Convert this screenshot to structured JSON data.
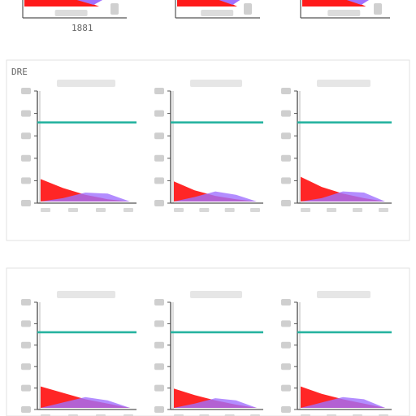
{
  "figure": {
    "section_labels": [
      "DRE",
      "",
      "",
      "",
      "",
      "",
      "",
      "",
      ""
    ],
    "top_strip_labels": [
      "1881",
      "",
      ""
    ]
  },
  "chart_data": [
    {
      "type": "area",
      "title": "",
      "xlabel": "",
      "ylabel": "",
      "ref_line": 0.72,
      "series": [
        {
          "name": "",
          "color": "#ff1a1a",
          "values": [
            0.2,
            0.12,
            0.06,
            0.02,
            0.0
          ]
        },
        {
          "name": "",
          "color": "#a070ff",
          "values": [
            0.0,
            0.03,
            0.08,
            0.07,
            0.0
          ]
        }
      ]
    },
    {
      "type": "area",
      "title": "",
      "xlabel": "",
      "ylabel": "",
      "ref_line": 0.72,
      "series": [
        {
          "name": "",
          "color": "#ff1a1a",
          "values": [
            0.18,
            0.1,
            0.05,
            0.02,
            0.0
          ]
        },
        {
          "name": "",
          "color": "#a070ff",
          "values": [
            0.0,
            0.04,
            0.09,
            0.06,
            0.0
          ]
        }
      ]
    },
    {
      "type": "area",
      "title": "",
      "xlabel": "",
      "ylabel": "",
      "ref_line": 0.72,
      "series": [
        {
          "name": "",
          "color": "#ff1a1a",
          "values": [
            0.22,
            0.13,
            0.07,
            0.03,
            0.0
          ]
        },
        {
          "name": "",
          "color": "#a070ff",
          "values": [
            0.0,
            0.03,
            0.09,
            0.08,
            0.0
          ]
        }
      ]
    },
    {
      "type": "area",
      "title": "",
      "xlabel": "",
      "ylabel": "",
      "ref_line": 0.72,
      "series": [
        {
          "name": "",
          "color": "#ff1a1a",
          "values": [
            0.2,
            0.14,
            0.08,
            0.04,
            0.0
          ]
        },
        {
          "name": "",
          "color": "#a070ff",
          "values": [
            0.0,
            0.05,
            0.1,
            0.07,
            0.0
          ]
        }
      ]
    },
    {
      "type": "area",
      "title": "",
      "xlabel": "",
      "ylabel": "",
      "ref_line": 0.72,
      "series": [
        {
          "name": "",
          "color": "#ff1a1a",
          "values": [
            0.18,
            0.12,
            0.07,
            0.03,
            0.0
          ]
        },
        {
          "name": "",
          "color": "#a070ff",
          "values": [
            0.0,
            0.04,
            0.09,
            0.07,
            0.0
          ]
        }
      ]
    },
    {
      "type": "area",
      "title": "",
      "xlabel": "",
      "ylabel": "",
      "ref_line": 0.72,
      "series": [
        {
          "name": "",
          "color": "#ff1a1a",
          "values": [
            0.2,
            0.13,
            0.08,
            0.04,
            0.0
          ]
        },
        {
          "name": "",
          "color": "#a070ff",
          "values": [
            0.0,
            0.05,
            0.1,
            0.08,
            0.0
          ]
        }
      ]
    }
  ],
  "colors": {
    "ref_line": "#27b3a0",
    "axis": "#555555",
    "text": "#666666",
    "border": "#dddddd"
  }
}
